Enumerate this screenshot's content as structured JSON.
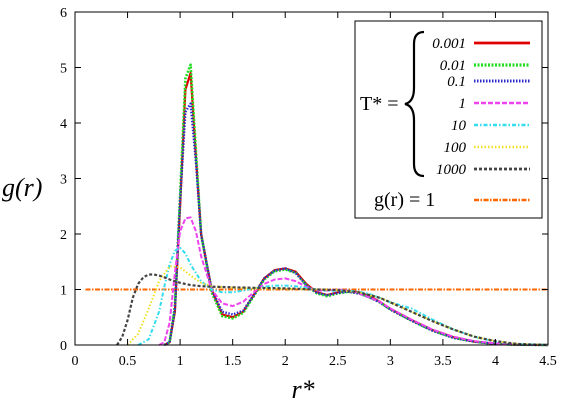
{
  "chart_data": {
    "type": "line",
    "title": "",
    "xlabel": "r*",
    "ylabel": "g(r)",
    "xlim": [
      0,
      4.5
    ],
    "ylim": [
      0,
      6
    ],
    "x_ticks": [
      "0",
      "0.5",
      "1",
      "1.5",
      "2",
      "2.5",
      "3",
      "3.5",
      "4",
      "4.5"
    ],
    "y_ticks": [
      "0",
      "1",
      "2",
      "3",
      "4",
      "5",
      "6"
    ],
    "legend_title": "T* =",
    "legend_position": "top-right",
    "grid": false,
    "series": [
      {
        "name": "0.001",
        "color": "#e00000",
        "dash": "solid",
        "width": 2.2,
        "x": [
          0.85,
          0.9,
          0.95,
          1.0,
          1.05,
          1.1,
          1.15,
          1.2,
          1.3,
          1.4,
          1.5,
          1.6,
          1.7,
          1.8,
          1.9,
          2.0,
          2.1,
          2.2,
          2.3,
          2.4,
          2.5,
          2.6,
          2.7,
          2.8,
          2.9,
          3.0,
          3.2,
          3.4,
          3.6,
          3.8,
          4.0,
          4.2,
          4.5
        ],
        "y": [
          0,
          0.05,
          0.6,
          2.5,
          4.6,
          4.9,
          3.4,
          2.0,
          1.0,
          0.55,
          0.5,
          0.6,
          0.9,
          1.2,
          1.35,
          1.38,
          1.32,
          1.1,
          0.95,
          0.9,
          0.95,
          0.98,
          0.95,
          0.88,
          0.78,
          0.65,
          0.45,
          0.27,
          0.14,
          0.06,
          0.02,
          0.005,
          0
        ]
      },
      {
        "name": "0.01",
        "color": "#22dd22",
        "dash": "2,1.5",
        "width": 2.6,
        "x": [
          0.85,
          0.9,
          0.95,
          1.0,
          1.05,
          1.1,
          1.15,
          1.2,
          1.3,
          1.4,
          1.5,
          1.6,
          1.7,
          1.8,
          1.9,
          2.0,
          2.1,
          2.2,
          2.3,
          2.4,
          2.5,
          2.6,
          2.7,
          2.8,
          2.9,
          3.0,
          3.2,
          3.4,
          3.6,
          3.8,
          4.0,
          4.2,
          4.5
        ],
        "y": [
          0,
          0.05,
          0.7,
          2.7,
          4.8,
          5.05,
          3.5,
          2.0,
          0.95,
          0.52,
          0.48,
          0.58,
          0.88,
          1.18,
          1.33,
          1.36,
          1.3,
          1.08,
          0.93,
          0.88,
          0.93,
          0.96,
          0.93,
          0.86,
          0.77,
          0.64,
          0.44,
          0.26,
          0.13,
          0.06,
          0.02,
          0.005,
          0
        ]
      },
      {
        "name": "0.1",
        "color": "#2a2acc",
        "dash": "1.5,1.5",
        "width": 2.4,
        "x": [
          0.85,
          0.9,
          0.95,
          1.0,
          1.05,
          1.1,
          1.15,
          1.2,
          1.3,
          1.4,
          1.5,
          1.6,
          1.7,
          1.8,
          1.9,
          2.0,
          2.1,
          2.2,
          2.3,
          2.4,
          2.5,
          2.6,
          2.7,
          2.8,
          2.9,
          3.0,
          3.2,
          3.4,
          3.6,
          3.8,
          4.0,
          4.2,
          4.5
        ],
        "y": [
          0,
          0.05,
          0.65,
          2.6,
          4.2,
          4.35,
          3.3,
          2.0,
          1.0,
          0.6,
          0.55,
          0.62,
          0.9,
          1.2,
          1.34,
          1.38,
          1.3,
          1.08,
          0.94,
          0.9,
          0.94,
          0.96,
          0.93,
          0.86,
          0.77,
          0.64,
          0.44,
          0.26,
          0.13,
          0.06,
          0.02,
          0.005,
          0
        ]
      },
      {
        "name": "1",
        "color": "#ee44ee",
        "dash": "5,2",
        "width": 2.0,
        "x": [
          0.8,
          0.85,
          0.9,
          0.95,
          1.0,
          1.05,
          1.1,
          1.15,
          1.2,
          1.3,
          1.4,
          1.5,
          1.6,
          1.7,
          1.8,
          1.9,
          2.0,
          2.1,
          2.2,
          2.3,
          2.4,
          2.5,
          2.6,
          2.7,
          2.8,
          2.9,
          3.0,
          3.2,
          3.4,
          3.6,
          3.8,
          4.0,
          4.2,
          4.5
        ],
        "y": [
          0,
          0.05,
          0.4,
          1.3,
          2.05,
          2.28,
          2.3,
          2.05,
          1.6,
          1.0,
          0.75,
          0.7,
          0.78,
          0.95,
          1.1,
          1.18,
          1.2,
          1.15,
          1.05,
          0.98,
          0.98,
          1.0,
          0.98,
          0.93,
          0.86,
          0.78,
          0.66,
          0.46,
          0.28,
          0.15,
          0.07,
          0.03,
          0.01,
          0
        ]
      },
      {
        "name": "10",
        "color": "#33ddee",
        "dash": "4,2,1.5,2",
        "width": 2.0,
        "x": [
          0.6,
          0.7,
          0.8,
          0.85,
          0.9,
          0.95,
          1.0,
          1.05,
          1.1,
          1.2,
          1.3,
          1.4,
          1.5,
          1.6,
          1.7,
          1.8,
          1.9,
          2.0,
          2.1,
          2.2,
          2.3,
          2.4,
          2.5,
          2.6,
          2.7,
          2.8,
          2.9,
          3.0,
          3.2,
          3.4,
          3.6,
          3.8,
          4.0,
          4.2,
          4.5
        ],
        "y": [
          0,
          0.1,
          0.6,
          1.05,
          1.45,
          1.7,
          1.75,
          1.65,
          1.45,
          1.15,
          1.0,
          0.95,
          0.95,
          0.98,
          1.02,
          1.05,
          1.07,
          1.07,
          1.06,
          1.03,
          1.0,
          0.98,
          0.98,
          0.98,
          0.96,
          0.92,
          0.85,
          0.77,
          0.66,
          0.46,
          0.28,
          0.15,
          0.06,
          0.02,
          0
        ]
      },
      {
        "name": "100",
        "color": "#f0e020",
        "dash": "1.5,2",
        "width": 2.0,
        "x": [
          0.5,
          0.6,
          0.7,
          0.8,
          0.9,
          1.0,
          1.1,
          1.2,
          1.3,
          1.5,
          1.7,
          2.0,
          2.3,
          2.5,
          2.7,
          2.9,
          3.0,
          3.2,
          3.4,
          3.6,
          3.8,
          4.0,
          4.2,
          4.5
        ],
        "y": [
          0,
          0.2,
          0.65,
          1.15,
          1.42,
          1.4,
          1.25,
          1.12,
          1.06,
          1.03,
          1.02,
          1.01,
          1.0,
          0.99,
          0.95,
          0.85,
          0.77,
          0.6,
          0.43,
          0.28,
          0.15,
          0.07,
          0.02,
          0
        ]
      },
      {
        "name": "1000",
        "color": "#444444",
        "dash": "3,2",
        "width": 2.2,
        "x": [
          0.4,
          0.45,
          0.5,
          0.55,
          0.6,
          0.65,
          0.7,
          0.75,
          0.8,
          0.85,
          0.9,
          1.0,
          1.1,
          1.2,
          1.3,
          1.5,
          1.7,
          2.0,
          2.3,
          2.5,
          2.7,
          2.9,
          3.0,
          3.2,
          3.4,
          3.6,
          3.8,
          4.0,
          4.2,
          4.5
        ],
        "y": [
          0,
          0.15,
          0.45,
          0.85,
          1.1,
          1.22,
          1.27,
          1.27,
          1.25,
          1.22,
          1.18,
          1.12,
          1.08,
          1.06,
          1.05,
          1.04,
          1.03,
          1.02,
          1.0,
          0.99,
          0.95,
          0.85,
          0.77,
          0.6,
          0.43,
          0.28,
          0.15,
          0.07,
          0.02,
          0
        ]
      }
    ],
    "reference_line": {
      "name": "g(r) = 1",
      "color": "#ff6600",
      "y": 1,
      "x": [
        0.1,
        4.5
      ]
    }
  }
}
